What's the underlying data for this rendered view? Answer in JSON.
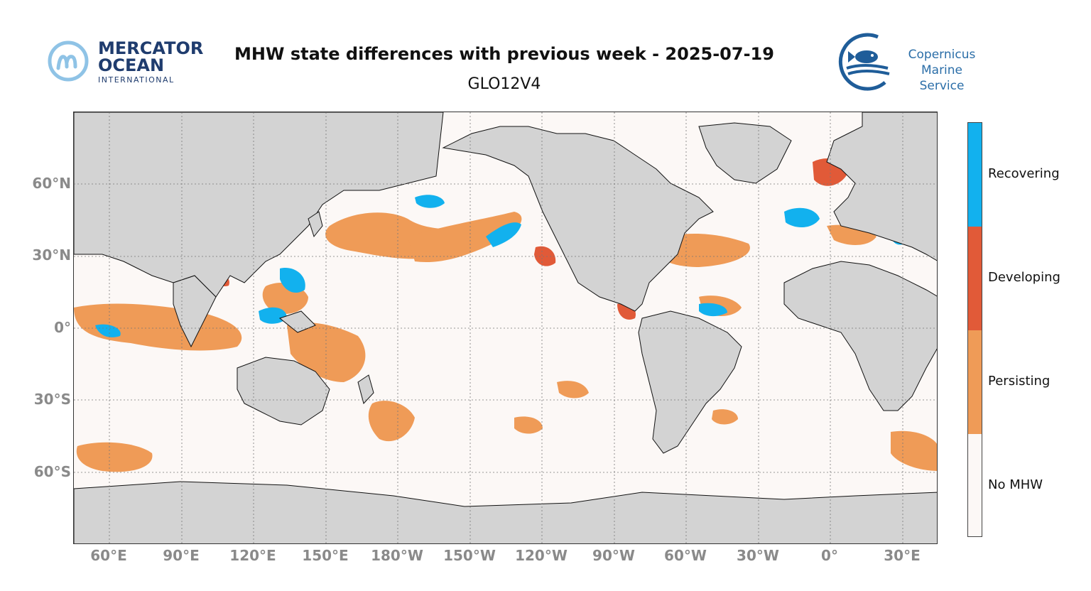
{
  "header": {
    "title": "MHW state differences with previous week - 2025-07-19",
    "subtitle": "GLO12V4"
  },
  "logos": {
    "left": {
      "line1": "MERCATOR",
      "line2": "OCEAN",
      "line3": "INTERNATIONAL",
      "icon": "mercator-m-icon"
    },
    "right": {
      "line1": "Copernicus",
      "line2": "Marine Service",
      "icon": "fish-icon"
    }
  },
  "map": {
    "x_ticks": [
      "60°E",
      "90°E",
      "120°E",
      "150°E",
      "180°W",
      "150°W",
      "120°W",
      "90°W",
      "60°W",
      "30°W",
      "0°",
      "30°E"
    ],
    "y_ticks": [
      "60°N",
      "30°N",
      "0°",
      "30°S",
      "60°S"
    ],
    "grid": true,
    "land_color": "#d3d3d3",
    "ocean_color": "#fcf8f6"
  },
  "legend": {
    "items": [
      {
        "label": "Recovering",
        "color": "#12b1ee"
      },
      {
        "label": "Developing",
        "color": "#e15a38"
      },
      {
        "label": "Persisting",
        "color": "#ef9b57"
      },
      {
        "label": "No MHW",
        "color": "#fcf8f6"
      }
    ]
  }
}
